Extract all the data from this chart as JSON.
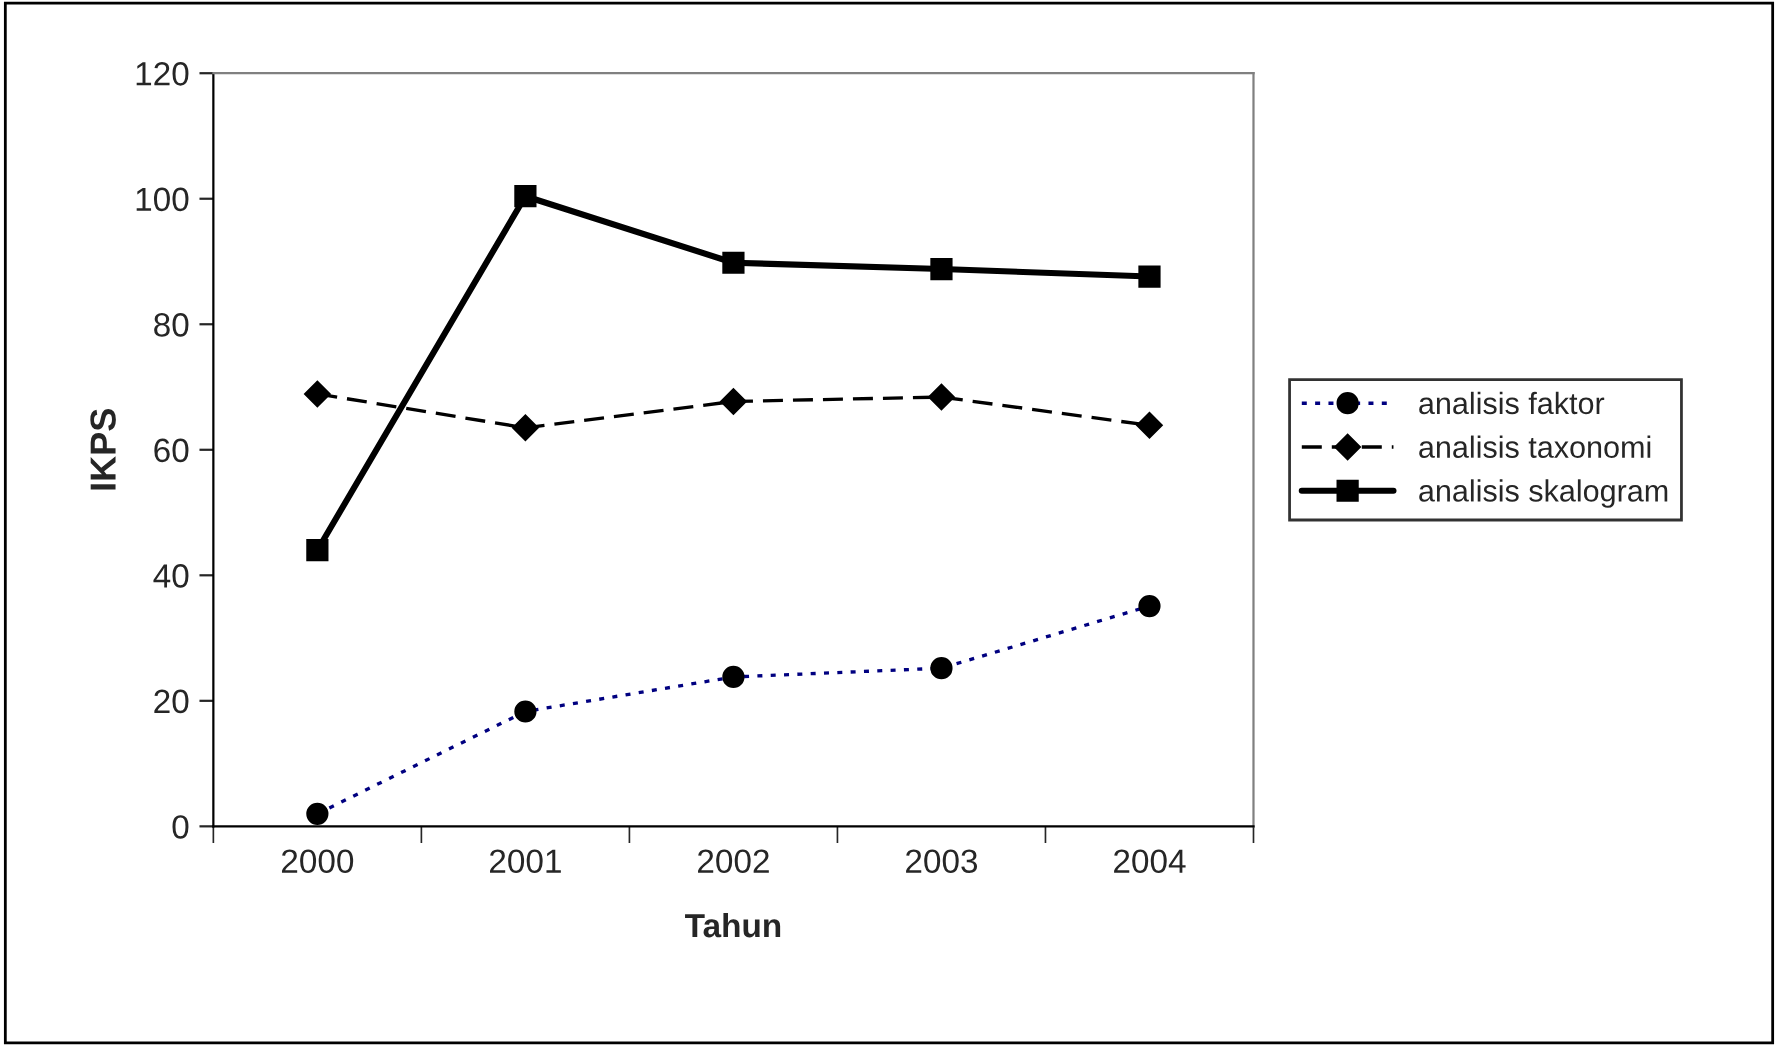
{
  "chart_data": {
    "type": "line",
    "xlabel": "Tahun",
    "ylabel": "IKPS",
    "categories": [
      "2000",
      "2001",
      "2002",
      "2003",
      "2004"
    ],
    "series": [
      {
        "name": "analisis faktor",
        "color": "#000080",
        "marker": "circle",
        "line_style": "dotted",
        "values": [
          2,
          18.3,
          23.8,
          25.2,
          35.1
        ]
      },
      {
        "name": "analisis taxonomi",
        "color": "#000000",
        "marker": "diamond",
        "line_style": "dashed",
        "values": [
          68.9,
          63.5,
          67.7,
          68.4,
          63.9
        ]
      },
      {
        "name": "analisis skalogram",
        "color": "#000000",
        "marker": "square",
        "line_style": "solid",
        "values": [
          44,
          100.4,
          89.8,
          88.8,
          87.6
        ]
      }
    ],
    "ylim": [
      0,
      120
    ],
    "yticks": [
      0,
      20,
      40,
      60,
      80,
      100,
      120
    ],
    "grid": false,
    "legend": "right"
  }
}
